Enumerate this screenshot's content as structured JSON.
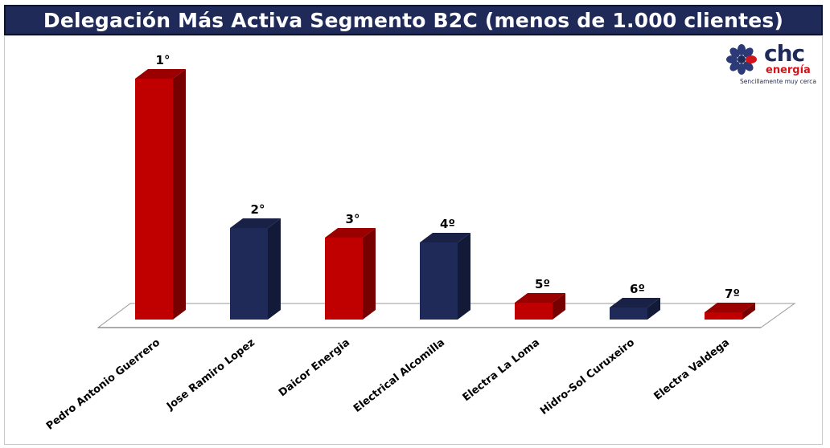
{
  "header": {
    "title": "Delegación Más Activa Segmento B2C (menos de 1.000 clientes)"
  },
  "logo": {
    "brand": "chc",
    "sub": "energía",
    "tagline": "Sencillamente muy cerca"
  },
  "colors": {
    "red": "#c00000",
    "navy": "#1f2a58",
    "title_bg": "#1f2a58"
  },
  "chart_data": {
    "type": "bar",
    "categories": [
      "Pedro Antonio Guerrero",
      "Jose Ramiro Lopez",
      "Daicor Energia",
      "Electrical Alcomilla",
      "Electra La Loma",
      "Hidro-Sol Curuxeiro",
      "Electra Valdega"
    ],
    "values": [
      100,
      38,
      34,
      32,
      7,
      5,
      3
    ],
    "ranks": [
      "1°",
      "2°",
      "3°",
      "4º",
      "5º",
      "6º",
      "7º"
    ],
    "bar_colors": [
      "red",
      "navy",
      "red",
      "navy",
      "red",
      "navy",
      "red"
    ],
    "title": "",
    "xlabel": "",
    "ylabel": "",
    "ylim": [
      0,
      100
    ],
    "grid": false,
    "legend": "none",
    "three_d": true
  }
}
